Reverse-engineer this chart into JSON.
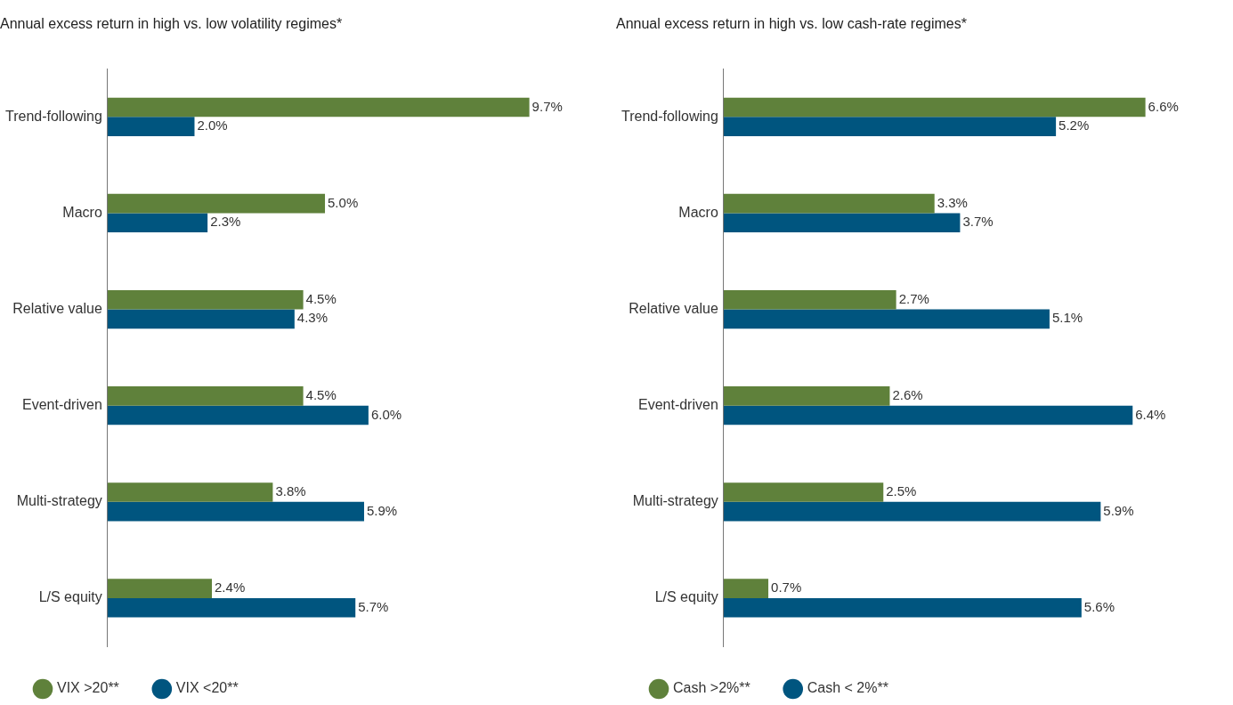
{
  "chart_data": [
    {
      "type": "bar",
      "orientation": "horizontal",
      "title": "Annual excess return in high vs. low volatility regimes*",
      "categories": [
        "Trend-following",
        "Macro",
        "Relative value",
        "Event-driven",
        "Multi-strategy",
        "L/S equity"
      ],
      "legend": "bottom",
      "series": [
        {
          "name": "VIX >20**",
          "color": "#5f813b",
          "values": [
            9.7,
            5.0,
            4.5,
            4.5,
            3.8,
            2.4
          ],
          "value_labels": [
            "9.7%",
            "5.0%",
            "4.5%",
            "4.5%",
            "3.8%",
            "2.4%"
          ]
        },
        {
          "name": "VIX <20**",
          "color": "#00557f",
          "values": [
            2.0,
            2.3,
            4.3,
            6.0,
            5.9,
            5.7
          ],
          "value_labels": [
            "2.0%",
            "2.3%",
            "4.3%",
            "6.0%",
            "5.9%",
            "5.7%"
          ]
        }
      ]
    },
    {
      "type": "bar",
      "orientation": "horizontal",
      "title": "Annual excess return in high vs. low cash-rate regimes*",
      "categories": [
        "Trend-following",
        "Macro",
        "Relative value",
        "Event-driven",
        "Multi-strategy",
        "L/S equity"
      ],
      "legend": "bottom",
      "series": [
        {
          "name": "Cash >2%**",
          "color": "#5f813b",
          "values": [
            6.6,
            3.3,
            2.7,
            2.6,
            2.5,
            0.7
          ],
          "value_labels": [
            "6.6%",
            "3.3%",
            "2.7%",
            "2.6%",
            "2.5%",
            "0.7%"
          ]
        },
        {
          "name": "Cash < 2%**",
          "color": "#00557f",
          "values": [
            5.2,
            3.7,
            5.1,
            6.4,
            5.9,
            5.6
          ],
          "value_labels": [
            "5.2%",
            "3.7%",
            "5.1%",
            "6.4%",
            "5.9%",
            "5.6%"
          ]
        }
      ]
    }
  ]
}
